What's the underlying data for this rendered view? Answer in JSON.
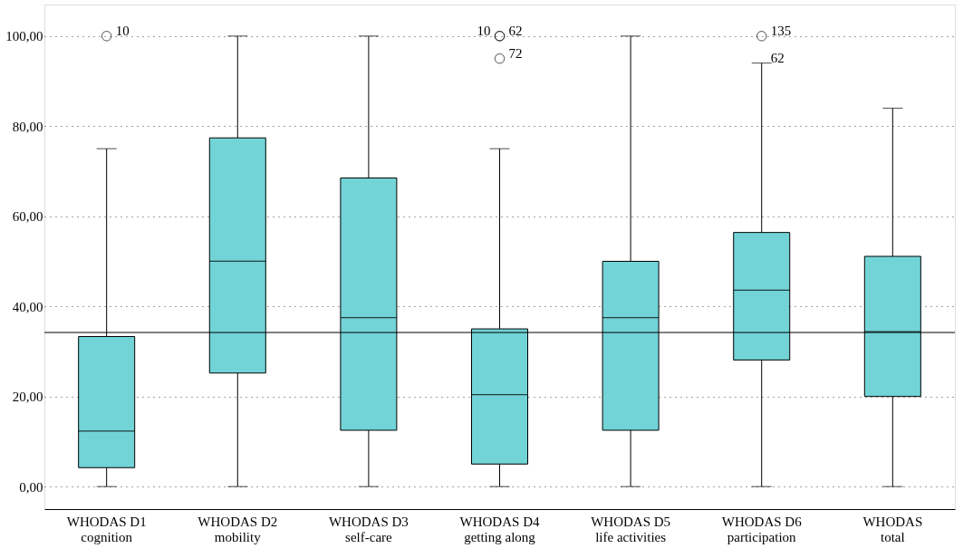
{
  "chart_data": {
    "type": "box",
    "categories": [
      "WHODAS D1\ncognition",
      "WHODAS D2\nmobility",
      "WHODAS D3\nself-care",
      "WHODAS D4\ngetting along",
      "WHODAS D5\nlife activities",
      "WHODAS D6\nparticipation",
      "WHODAS\ntotal"
    ],
    "boxes": [
      {
        "low": 0,
        "q1": 4.2,
        "median": 12.3,
        "q3": 33.3,
        "high": 75,
        "outliers": [
          100
        ]
      },
      {
        "low": 0,
        "q1": 25.2,
        "median": 50,
        "q3": 77.4,
        "high": 100
      },
      {
        "low": 0,
        "q1": 12.5,
        "median": 37.5,
        "q3": 68.5,
        "high": 100
      },
      {
        "low": 0,
        "q1": 5,
        "median": 20.4,
        "q3": 35,
        "high": 75,
        "outliers": [
          100,
          100,
          95
        ]
      },
      {
        "low": 0,
        "q1": 12.5,
        "median": 37.5,
        "q3": 50,
        "high": 100
      },
      {
        "low": 0,
        "q1": 28.1,
        "median": 43.6,
        "q3": 56.4,
        "high": 94,
        "outliers": [
          100
        ]
      },
      {
        "low": 0,
        "q1": 20,
        "median": 34.4,
        "q3": 51.1,
        "high": 84
      }
    ],
    "color": "#72d4d7",
    "ylim": [
      -5,
      107
    ],
    "yticks": [
      {
        "value": 0,
        "label": "0,00"
      },
      {
        "value": 20,
        "label": "20,00"
      },
      {
        "value": 40,
        "label": "40,00"
      },
      {
        "value": 60,
        "label": "60,00"
      },
      {
        "value": 80,
        "label": "80,00"
      },
      {
        "value": 100,
        "label": "100,00"
      }
    ],
    "grid": "y",
    "ref_lines": [
      {
        "axis": "y",
        "value": 34.2
      }
    ],
    "annotations": [
      "10",
      "10",
      "62",
      "72",
      "135",
      "62"
    ]
  }
}
